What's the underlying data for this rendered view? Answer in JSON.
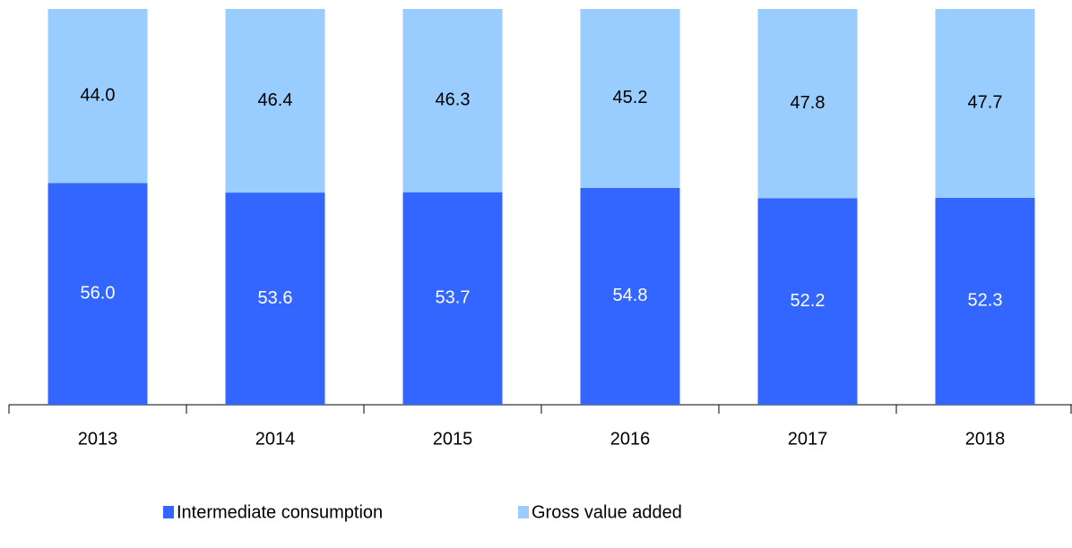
{
  "chart_data": {
    "type": "stacked_bar",
    "categories": [
      "2013",
      "2014",
      "2015",
      "2016",
      "2017",
      "2018"
    ],
    "series": [
      {
        "name": "Intermediate consumption",
        "color": "#3366ff",
        "label_color": "#ffffff",
        "values": [
          56.0,
          53.6,
          53.7,
          54.8,
          52.2,
          52.3
        ],
        "value_labels": [
          "56.0",
          "53.6",
          "53.7",
          "54.8",
          "52.2",
          "52.3"
        ]
      },
      {
        "name": "Gross value added",
        "color": "#99ccff",
        "label_color": "#000000",
        "values": [
          44.0,
          46.4,
          46.3,
          45.2,
          47.8,
          47.7
        ],
        "value_labels": [
          "44.0",
          "46.4",
          "46.3",
          "45.2",
          "47.8",
          "47.7"
        ]
      }
    ],
    "ylim": [
      0,
      100
    ]
  }
}
